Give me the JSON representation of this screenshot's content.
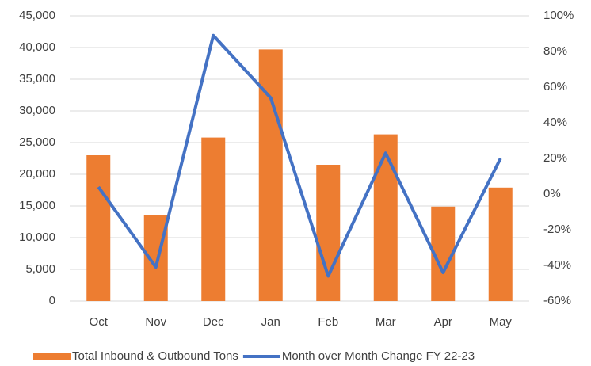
{
  "chart_data": {
    "type": "bar_line",
    "categories": [
      "Oct",
      "Nov",
      "Dec",
      "Jan",
      "Feb",
      "Mar",
      "Apr",
      "May"
    ],
    "series": [
      {
        "name": "Total Inbound & Outbound Tons",
        "type": "bar",
        "color": "#ed7d31",
        "values": [
          23000,
          13600,
          25800,
          39700,
          21500,
          26300,
          14900,
          17900
        ]
      },
      {
        "name": "Month over Month Change FY 22-23",
        "type": "line",
        "axis": "y2",
        "color": "#4472c4",
        "values": [
          4,
          -41,
          89,
          54,
          -46,
          23,
          -44,
          20
        ]
      }
    ],
    "ylim": [
      0,
      45000
    ],
    "yticks": [
      0,
      {
        "value": 5000,
        "label": "5,000"
      },
      {
        "value": 10000,
        "label": "10,000"
      },
      {
        "value": 15000,
        "label": "15,000"
      },
      {
        "value": 20000,
        "label": "20,000"
      },
      {
        "value": 25000,
        "label": "25,000"
      },
      {
        "value": 30000,
        "label": "30,000"
      },
      {
        "value": 35000,
        "label": "35,000"
      },
      {
        "value": 40000,
        "label": "40,000"
      },
      {
        "value": 45000,
        "label": "45,000"
      }
    ],
    "y2lim": [
      -60,
      100
    ],
    "y2ticks": [
      {
        "value": -60,
        "label": "-60%"
      },
      {
        "value": -40,
        "label": "-40%"
      },
      {
        "value": -20,
        "label": "-20%"
      },
      {
        "value": 0,
        "label": "0%"
      },
      {
        "value": 20,
        "label": "20%"
      },
      {
        "value": 40,
        "label": "40%"
      },
      {
        "value": 60,
        "label": "60%"
      },
      {
        "value": 80,
        "label": "80%"
      },
      {
        "value": 100,
        "label": "100%"
      }
    ],
    "grid": true,
    "legend": "bottom"
  }
}
